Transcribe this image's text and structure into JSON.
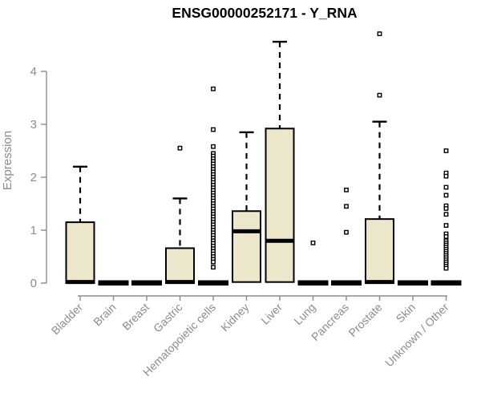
{
  "chart_data": {
    "type": "boxplot",
    "title": "ENSG00000252171 - Y_RNA",
    "ylabel": "Expression",
    "xlabel": "",
    "ylim": [
      0,
      4.75
    ],
    "yticks": [
      0,
      1,
      2,
      3,
      4
    ],
    "grid": false,
    "legend": false,
    "categories": [
      "Bladder",
      "Brain",
      "Breast",
      "Gastric",
      "Hematopoietic cells",
      "Kidney",
      "Liver",
      "Lung",
      "Pancreas",
      "Prostate",
      "Skin",
      "Unknown / Other"
    ],
    "boxes": [
      {
        "category": "Bladder",
        "min": 0,
        "q1": 0,
        "median": 0.02,
        "q3": 1.15,
        "max": 2.2,
        "outliers": []
      },
      {
        "category": "Brain",
        "min": 0,
        "q1": 0,
        "median": 0,
        "q3": 0,
        "max": 0,
        "outliers": []
      },
      {
        "category": "Breast",
        "min": 0,
        "q1": 0,
        "median": 0,
        "q3": 0,
        "max": 0,
        "outliers": []
      },
      {
        "category": "Gastric",
        "min": 0,
        "q1": 0,
        "median": 0.02,
        "q3": 0.66,
        "max": 1.6,
        "outliers": [
          2.55
        ]
      },
      {
        "category": "Hematopoietic cells",
        "min": 0,
        "q1": 0,
        "median": 0,
        "q3": 0,
        "max": 0,
        "outliers": [
          3.67,
          2.9,
          2.58,
          2.45,
          2.4,
          2.35,
          2.3,
          2.25,
          2.2,
          2.15,
          2.1,
          2.05,
          2.0,
          1.95,
          1.9,
          1.85,
          1.8,
          1.75,
          1.7,
          1.65,
          1.6,
          1.55,
          1.5,
          1.45,
          1.4,
          1.35,
          1.3,
          1.25,
          1.2,
          1.15,
          1.1,
          1.05,
          1.0,
          0.95,
          0.9,
          0.85,
          0.8,
          0.75,
          0.7,
          0.65,
          0.6,
          0.55,
          0.5,
          0.45,
          0.4,
          0.3
        ]
      },
      {
        "category": "Kidney",
        "min": 0,
        "q1": 0.02,
        "median": 0.98,
        "q3": 1.36,
        "max": 2.85,
        "outliers": []
      },
      {
        "category": "Liver",
        "min": 0,
        "q1": 0.02,
        "median": 0.8,
        "q3": 2.92,
        "max": 4.56,
        "outliers": []
      },
      {
        "category": "Lung",
        "min": 0,
        "q1": 0,
        "median": 0,
        "q3": 0,
        "max": 0,
        "outliers": [
          0.76
        ]
      },
      {
        "category": "Pancreas",
        "min": 0,
        "q1": 0,
        "median": 0,
        "q3": 0,
        "max": 0,
        "outliers": [
          1.76,
          1.45,
          0.96
        ]
      },
      {
        "category": "Prostate",
        "min": 0,
        "q1": 0,
        "median": 0.02,
        "q3": 1.21,
        "max": 3.05,
        "outliers": [
          4.71,
          3.55
        ]
      },
      {
        "category": "Skin",
        "min": 0,
        "q1": 0,
        "median": 0,
        "q3": 0,
        "max": 0,
        "outliers": []
      },
      {
        "category": "Unknown / Other",
        "min": 0,
        "q1": 0,
        "median": 0,
        "q3": 0,
        "max": 0,
        "outliers": [
          2.5,
          2.08,
          2.02,
          1.81,
          1.66,
          1.46,
          1.41,
          1.3,
          1.09,
          0.93,
          0.88,
          0.8,
          0.76,
          0.72,
          0.68,
          0.64,
          0.6,
          0.56,
          0.52,
          0.48,
          0.44,
          0.4,
          0.36,
          0.32,
          0.28
        ]
      }
    ],
    "colors": {
      "box_fill": "#ECE6CB",
      "box_border": "#000000",
      "median": "#000000",
      "whisker": "#000000",
      "outlier_fill": "#FFFFFF",
      "axis": "#8C8C8C",
      "title": "#000000",
      "background": "#FFFFFF"
    }
  }
}
